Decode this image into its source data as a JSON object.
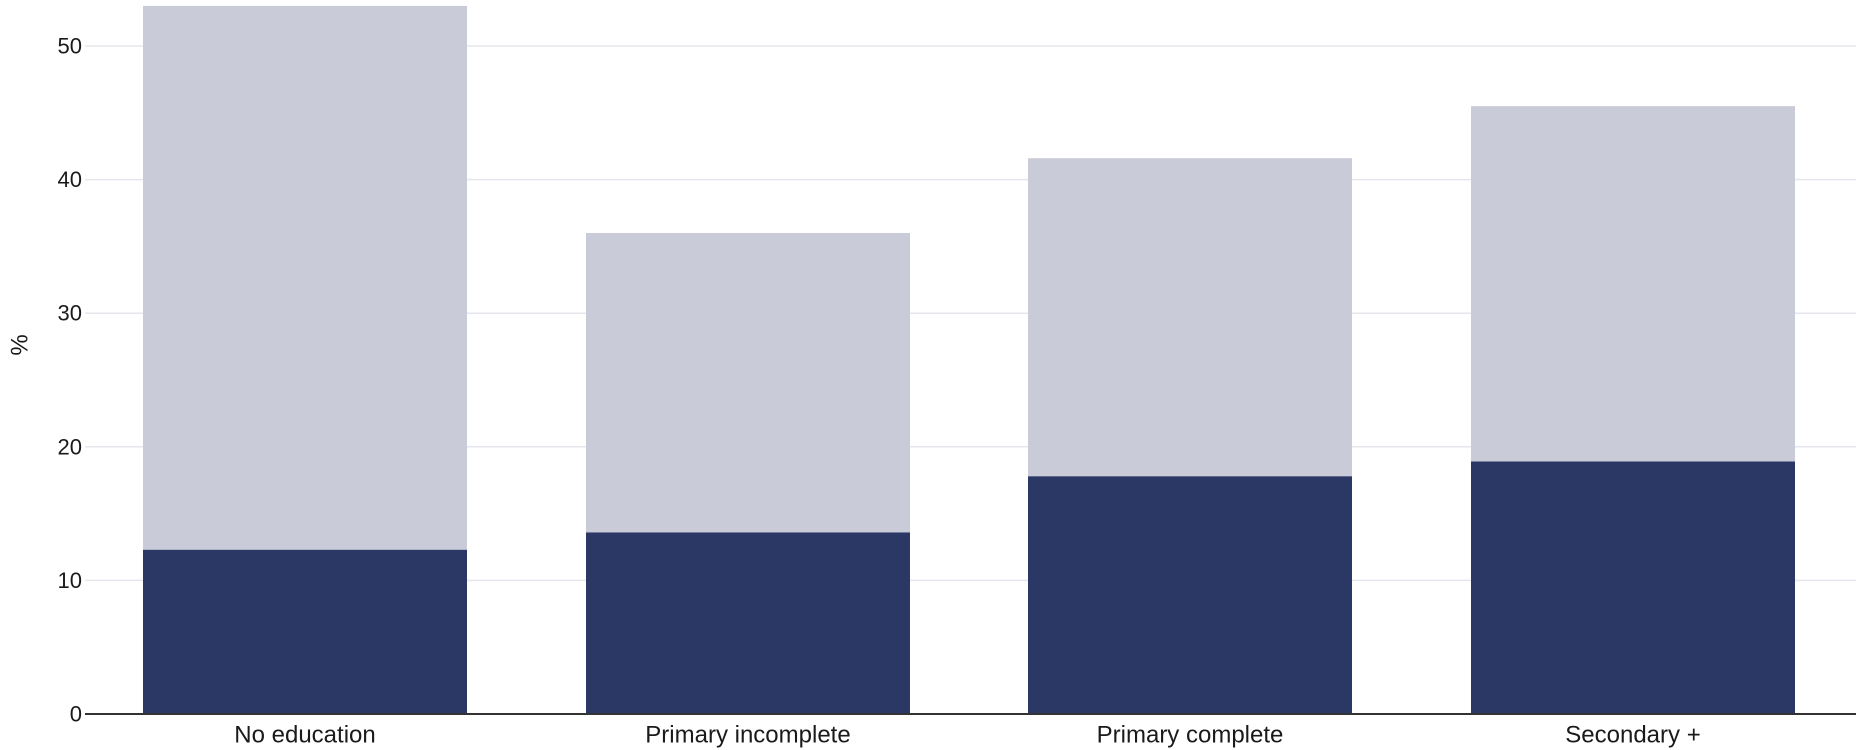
{
  "chart_data": {
    "type": "bar",
    "stacked": true,
    "categories": [
      "No education",
      "Primary incomplete",
      "Primary complete",
      "Secondary +"
    ],
    "series": [
      {
        "values": [
          12.3,
          13.6,
          17.8,
          18.9
        ],
        "color": "#2b3866"
      },
      {
        "values": [
          40.7,
          22.4,
          23.8,
          26.6
        ],
        "color": "#cacbd8"
      }
    ],
    "ylabel": "%",
    "ylim": [
      0,
      53
    ],
    "yticks": [
      0,
      10,
      20,
      30,
      40,
      50
    ],
    "grid": true,
    "legend": "none"
  }
}
